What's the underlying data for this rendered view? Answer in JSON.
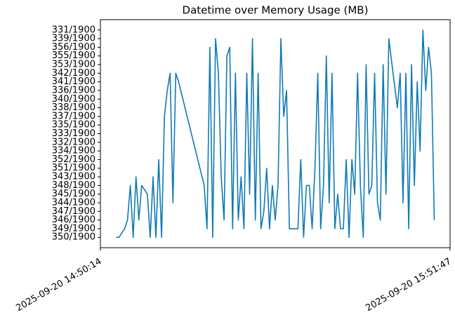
{
  "chart_data": {
    "type": "line",
    "title": "Datetime over Memory Usage (MB)",
    "color": "#0f7bb4",
    "xlim": [
      "2025-09-20 14:50:14",
      "2025-09-20 15:51:47"
    ],
    "xticks": [
      "2025-09-20 14:50:14",
      "2025-09-20 15:51:47"
    ],
    "y_categories": [
      "350/1900",
      "349/1900",
      "346/1900",
      "347/1900",
      "344/1900",
      "345/1900",
      "348/1900",
      "343/1900",
      "351/1900",
      "352/1900",
      "334/1900",
      "332/1900",
      "333/1900",
      "335/1900",
      "337/1900",
      "338/1900",
      "340/1900",
      "336/1900",
      "341/1900",
      "342/1900",
      "353/1900",
      "355/1900",
      "356/1900",
      "339/1900",
      "331/1900"
    ],
    "x": [
      "2025-09-20 14:53:00",
      "2025-09-20 14:53:30",
      "2025-09-20 14:54:30",
      "2025-09-20 14:55:00",
      "2025-09-20 14:55:30",
      "2025-09-20 14:56:00",
      "2025-09-20 14:56:30",
      "2025-09-20 14:57:00",
      "2025-09-20 14:57:30",
      "2025-09-20 14:58:30",
      "2025-09-20 14:59:00",
      "2025-09-20 14:59:30",
      "2025-09-20 15:00:00",
      "2025-09-20 15:00:30",
      "2025-09-20 15:01:00",
      "2025-09-20 15:01:30",
      "2025-09-20 15:02:00",
      "2025-09-20 15:02:30",
      "2025-09-20 15:03:00",
      "2025-09-20 15:03:30",
      "2025-09-20 15:04:00",
      "2025-09-20 15:08:30",
      "2025-09-20 15:09:00",
      "2025-09-20 15:09:30",
      "2025-09-20 15:10:00",
      "2025-09-20 15:10:30",
      "2025-09-20 15:11:00",
      "2025-09-20 15:11:30",
      "2025-09-20 15:12:00",
      "2025-09-20 15:12:30",
      "2025-09-20 15:13:00",
      "2025-09-20 15:13:30",
      "2025-09-20 15:14:00",
      "2025-09-20 15:14:30",
      "2025-09-20 15:15:00",
      "2025-09-20 15:15:30",
      "2025-09-20 15:16:00",
      "2025-09-20 15:16:30",
      "2025-09-20 15:17:00",
      "2025-09-20 15:17:30",
      "2025-09-20 15:18:00",
      "2025-09-20 15:18:30",
      "2025-09-20 15:19:00",
      "2025-09-20 15:19:30",
      "2025-09-20 15:20:00",
      "2025-09-20 15:20:30",
      "2025-09-20 15:21:00",
      "2025-09-20 15:21:30",
      "2025-09-20 15:22:00",
      "2025-09-20 15:22:30",
      "2025-09-20 15:23:00",
      "2025-09-20 15:23:30",
      "2025-09-20 15:25:00",
      "2025-09-20 15:25:30",
      "2025-09-20 15:26:00",
      "2025-09-20 15:26:30",
      "2025-09-20 15:27:00",
      "2025-09-20 15:27:30",
      "2025-09-20 15:28:00",
      "2025-09-20 15:28:30",
      "2025-09-20 15:29:00",
      "2025-09-20 15:29:30",
      "2025-09-20 15:30:00",
      "2025-09-20 15:30:30",
      "2025-09-20 15:31:00",
      "2025-09-20 15:31:30",
      "2025-09-20 15:32:00",
      "2025-09-20 15:32:30",
      "2025-09-20 15:33:00",
      "2025-09-20 15:33:30",
      "2025-09-20 15:34:00",
      "2025-09-20 15:34:30",
      "2025-09-20 15:35:00",
      "2025-09-20 15:35:30",
      "2025-09-20 15:36:00",
      "2025-09-20 15:36:30",
      "2025-09-20 15:37:00",
      "2025-09-20 15:37:30",
      "2025-09-20 15:38:00",
      "2025-09-20 15:38:30",
      "2025-09-20 15:39:00",
      "2025-09-20 15:39:30",
      "2025-09-20 15:40:00",
      "2025-09-20 15:40:30",
      "2025-09-20 15:41:00",
      "2025-09-20 15:42:30",
      "2025-09-20 15:43:00",
      "2025-09-20 15:43:30",
      "2025-09-20 15:44:00",
      "2025-09-20 15:44:30",
      "2025-09-20 15:45:00",
      "2025-09-20 15:45:30",
      "2025-09-20 15:46:00",
      "2025-09-20 15:46:30",
      "2025-09-20 15:47:00",
      "2025-09-20 15:47:30",
      "2025-09-20 15:48:00",
      "2025-09-20 15:48:30",
      "2025-09-20 15:49:00"
    ],
    "values": [
      "350/1900",
      "350/1900",
      "349/1900",
      "346/1900",
      "348/1900",
      "350/1900",
      "343/1900",
      "346/1900",
      "348/1900",
      "345/1900",
      "350/1900",
      "343/1900",
      "350/1900",
      "352/1900",
      "350/1900",
      "337/1900",
      "336/1900",
      "342/1900",
      "344/1900",
      "342/1900",
      "341/1900",
      "348/1900",
      "349/1900",
      "356/1900",
      "350/1900",
      "339/1900",
      "342/1900",
      "343/1900",
      "346/1900",
      "355/1900",
      "356/1900",
      "349/1900",
      "342/1900",
      "346/1900",
      "343/1900",
      "349/1900",
      "342/1900",
      "345/1900",
      "339/1900",
      "346/1900",
      "342/1900",
      "349/1900",
      "347/1900",
      "351/1900",
      "349/1900",
      "348/1900",
      "346/1900",
      "348/1900",
      "339/1900",
      "337/1900",
      "336/1900",
      "349/1900",
      "349/1900",
      "352/1900",
      "350/1900",
      "348/1900",
      "348/1900",
      "349/1900",
      "351/1900",
      "342/1900",
      "349/1900",
      "348/1900",
      "355/1900",
      "344/1900",
      "342/1900",
      "349/1900",
      "345/1900",
      "349/1900",
      "349/1900",
      "352/1900",
      "350/1900",
      "352/1900",
      "345/1900",
      "342/1900",
      "348/1900",
      "350/1900",
      "353/1900",
      "345/1900",
      "348/1900",
      "342/1900",
      "344/1900",
      "346/1900",
      "353/1900",
      "345/1900",
      "339/1900",
      "338/1900",
      "342/1900",
      "344/1900",
      "342/1900",
      "349/1900",
      "353/1900",
      "348/1900",
      "341/1900",
      "334/1900",
      "331/1900",
      "336/1900",
      "356/1900",
      "342/1900",
      "346/1900"
    ],
    "ylim": [
      -1.2,
      25.2
    ]
  }
}
